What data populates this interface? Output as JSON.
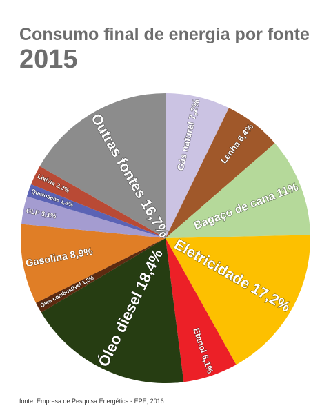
{
  "chart_data": {
    "type": "pie",
    "title": "Consumo final de energia por fonte",
    "subtitle": "2015",
    "source": "fonte: Empresa de Pesquisa Energética - EPE, 2016",
    "categories": [
      "Gás natural",
      "Lenha",
      "Bagaço de cana",
      "Eletricidade",
      "Etanol",
      "Óleo diesel",
      "Óleo combustível",
      "Gasolina",
      "GLP",
      "Querosene",
      "Lixívia",
      "Outras fontes"
    ],
    "values": [
      7.2,
      6.4,
      11,
      17.2,
      6.1,
      18.4,
      1.2,
      8.9,
      3.1,
      1.4,
      2.2,
      16.7
    ],
    "value_labels": [
      "7,2%",
      "6,4%",
      "11%",
      "17,2%",
      "6,1%",
      "18,4%",
      "1,2%",
      "8,9%",
      "3,1%",
      "1,4%",
      "2,2%",
      "16,7%"
    ],
    "colors": [
      "#cbc3e3",
      "#a0582a",
      "#b5d99a",
      "#fdc000",
      "#ec2027",
      "#263d12",
      "#5c2a10",
      "#e07e26",
      "#a49cd0",
      "#5b63b5",
      "#b94a35",
      "#8c8c8c"
    ]
  }
}
